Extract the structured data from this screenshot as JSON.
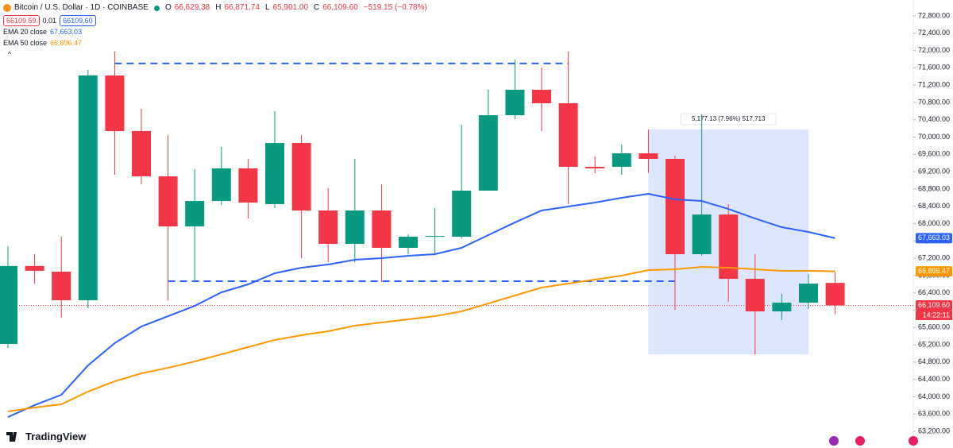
{
  "chart_data": {
    "type": "candlestick",
    "title": "Bitcoin / U.S. Dollar · 1D · COINBASE",
    "ohlc": [
      {
        "key": "O",
        "value": "66,629.38"
      },
      {
        "key": "H",
        "value": "66,871.74"
      },
      {
        "key": "L",
        "value": "65,901.00"
      },
      {
        "key": "C",
        "value": "66,109.60"
      }
    ],
    "change": "−519.15 (−0.78%)",
    "price_buttons": [
      "66109.59",
      "0.01",
      "66109.60"
    ],
    "up_color": "#089981",
    "down_color": "#f23645",
    "open": [
      65220,
      67020,
      66890,
      66229,
      71423,
      70138,
      69092,
      67936,
      68523,
      69276,
      68450,
      69863,
      68303,
      67532,
      68303,
      67440,
      67697,
      67697,
      68762,
      70505,
      71093,
      70781,
      69312,
      69312,
      69624,
      69496,
      67293,
      68211,
      66724,
      65972,
      66174,
      66629.38
    ],
    "high": [
      67480,
      67293,
      67697,
      71552,
      71974,
      70652,
      70047,
      69257,
      69771,
      69496,
      70597,
      70047,
      68817,
      69496,
      68909,
      67752,
      68358,
      70285,
      71093,
      71790,
      71607,
      71974,
      69551,
      69826,
      70175,
      69569,
      70524,
      68450,
      67293,
      66376,
      66834,
      66871.74
    ],
    "low": [
      65130,
      66614,
      65825,
      66045,
      69129,
      68909,
      66229,
      66651,
      68431,
      68119,
      68358,
      67201,
      67110,
      67110,
      66651,
      67293,
      67275,
      67660,
      68762,
      70414,
      70138,
      68450,
      69165,
      69129,
      69165,
      66008,
      67257,
      66192,
      64980,
      65770,
      66027,
      65901
    ],
    "close": [
      67020,
      66910,
      66229,
      71423,
      70138,
      69092,
      67936,
      68523,
      69276,
      68486,
      69863,
      68303,
      67532,
      68303,
      67440,
      67697,
      67715,
      68762,
      70505,
      71093,
      70781,
      69312,
      69276,
      69624,
      69496,
      67293,
      68211,
      66724,
      65972,
      66174,
      66614,
      66109.6
    ],
    "last_price_label": "66,109.60",
    "last_time": "14:22:11",
    "indicators": [
      {
        "name": "EMA 20 close",
        "value_label": "67,663.03",
        "color": "#2962ff",
        "values": [
          63530,
          63806,
          64044,
          64723,
          65237,
          65623,
          65861,
          66100,
          66412,
          66596,
          66853,
          66981,
          67055,
          67165,
          67201,
          67256,
          67293,
          67440,
          67734,
          68027,
          68303,
          68394,
          68486,
          68596,
          68688,
          68560,
          68523,
          68339,
          68119,
          67917,
          67807,
          67663.03
        ]
      },
      {
        "name": "EMA 50 close",
        "value_label": "66,896.47",
        "color": "#ff9800",
        "values": [
          63659,
          63751,
          63824,
          64118,
          64356,
          64540,
          64668,
          64815,
          64980,
          65146,
          65311,
          65421,
          65513,
          65641,
          65715,
          65788,
          65861,
          65972,
          66155,
          66339,
          66522,
          66614,
          66706,
          66798,
          66926,
          66944,
          67000,
          66981,
          66944,
          66908,
          66908,
          66896.47
        ]
      }
    ],
    "hlines": [
      71700,
      66670
    ],
    "range_box": {
      "label": "5,177.13 (7.96%) 517,713",
      "top": 70175,
      "bottom": 64980
    },
    "ylim": [
      62815,
      73167
    ],
    "yticks": [
      {
        "value": 63200,
        "label": "63,200.00"
      },
      {
        "value": 63600,
        "label": "63,600.00"
      },
      {
        "value": 64000,
        "label": "64,000.00"
      },
      {
        "value": 64400,
        "label": "64,400.00"
      },
      {
        "value": 64800,
        "label": "64,800.00"
      },
      {
        "value": 65200,
        "label": "65,200.00"
      },
      {
        "value": 65600,
        "label": "65,600.00"
      },
      {
        "value": 66000,
        "label": "66,000.00"
      },
      {
        "value": 66400,
        "label": "66,400.00"
      },
      {
        "value": 66800,
        "label": "66,800.00"
      },
      {
        "value": 67200,
        "label": "67,200.00"
      },
      {
        "value": 67600,
        "label": "67,600.00"
      },
      {
        "value": 68000,
        "label": "68,000.00"
      },
      {
        "value": 68400,
        "label": "68,400.00"
      },
      {
        "value": 68800,
        "label": "68,800.00"
      },
      {
        "value": 69200,
        "label": "69,200.00"
      },
      {
        "value": 69600,
        "label": "69,600.00"
      },
      {
        "value": 70000,
        "label": "70,000.00"
      },
      {
        "value": 70400,
        "label": "70,400.00"
      },
      {
        "value": 70800,
        "label": "70,800.00"
      },
      {
        "value": 71200,
        "label": "71,200.00"
      },
      {
        "value": 71600,
        "label": "71,600.00"
      },
      {
        "value": 72000,
        "label": "72,000.00"
      },
      {
        "value": 72400,
        "label": "72,400.00"
      },
      {
        "value": 72800,
        "label": "72,800.00"
      }
    ],
    "grid": false,
    "brand": "TradingView"
  }
}
